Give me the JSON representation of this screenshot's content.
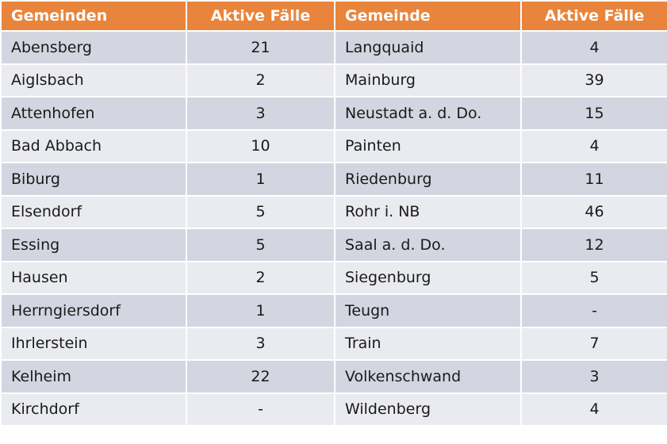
{
  "header": {
    "col1": "Gemeinden",
    "col2": "Aktive Fälle",
    "col3": "Gemeinde",
    "col4": "Aktive Fälle"
  },
  "colors": {
    "header_bg": "#e8843b",
    "row_dark": "#d3d6e0",
    "row_light": "#eaebf0"
  },
  "rows": [
    {
      "left_name": "Abensberg",
      "left_count": "21",
      "right_name": "Langquaid",
      "right_count": "4"
    },
    {
      "left_name": "Aiglsbach",
      "left_count": "2",
      "right_name": "Mainburg",
      "right_count": "39"
    },
    {
      "left_name": "Attenhofen",
      "left_count": "3",
      "right_name": "Neustadt a. d. Do.",
      "right_count": "15"
    },
    {
      "left_name": "Bad Abbach",
      "left_count": "10",
      "right_name": "Painten",
      "right_count": "4"
    },
    {
      "left_name": "Biburg",
      "left_count": "1",
      "right_name": "Riedenburg",
      "right_count": "11"
    },
    {
      "left_name": "Elsendorf",
      "left_count": "5",
      "right_name": "Rohr i. NB",
      "right_count": "46"
    },
    {
      "left_name": "Essing",
      "left_count": "5",
      "right_name": "Saal a. d. Do.",
      "right_count": "12"
    },
    {
      "left_name": "Hausen",
      "left_count": "2",
      "right_name": "Siegenburg",
      "right_count": "5"
    },
    {
      "left_name": "Herrngiersdorf",
      "left_count": "1",
      "right_name": "Teugn",
      "right_count": "-"
    },
    {
      "left_name": "Ihrlerstein",
      "left_count": "3",
      "right_name": "Train",
      "right_count": "7"
    },
    {
      "left_name": "Kelheim",
      "left_count": "22",
      "right_name": "Volkenschwand",
      "right_count": "3"
    },
    {
      "left_name": "Kirchdorf",
      "left_count": "-",
      "right_name": "Wildenberg",
      "right_count": "4"
    }
  ]
}
